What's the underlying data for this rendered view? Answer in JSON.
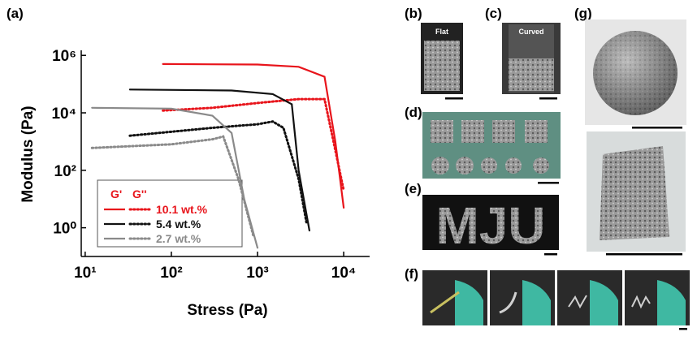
{
  "chart_data": {
    "type": "line",
    "panel": "(a)",
    "x_label": "Stress (Pa)",
    "y_label": "Modulus (Pa)",
    "log_x": true,
    "log_y": true,
    "xlim": [
      9,
      20000
    ],
    "ylim": [
      0.1,
      1500000
    ],
    "xticks": [
      {
        "value": 10,
        "label": "10¹"
      },
      {
        "value": 100,
        "label": "10²"
      },
      {
        "value": 1000,
        "label": "10³"
      },
      {
        "value": 10000,
        "label": "10⁴"
      }
    ],
    "yticks": [
      {
        "value": 1,
        "label": "10⁰"
      },
      {
        "value": 100,
        "label": "10²"
      },
      {
        "value": 10000,
        "label": "10⁴"
      },
      {
        "value": 1000000,
        "label": "10⁶"
      }
    ],
    "legend_headers": [
      "G'",
      "G''"
    ],
    "legend_position": "lower left",
    "series": [
      {
        "name": "10.1 wt.%",
        "color": "#e8141b",
        "storage": {
          "x": [
            80,
            1000,
            3000,
            6000,
            8000,
            10000
          ],
          "values": [
            500000,
            480000,
            400000,
            180000,
            1000,
            5
          ]
        },
        "loss": {
          "x": [
            80,
            300,
            1000,
            3000,
            6000,
            8000,
            10000
          ],
          "values": [
            12000,
            15000,
            22000,
            30000,
            30000,
            500,
            20
          ]
        }
      },
      {
        "name": "5.4 wt.%",
        "color": "#111111",
        "storage": {
          "x": [
            33,
            500,
            1500,
            2500,
            3000,
            4000
          ],
          "values": [
            65000,
            60000,
            45000,
            20000,
            100,
            0.8
          ]
        },
        "loss": {
          "x": [
            33,
            300,
            1000,
            1500,
            2000,
            3000,
            3700
          ],
          "values": [
            1600,
            3000,
            4000,
            5000,
            3000,
            50,
            1.5
          ]
        }
      },
      {
        "name": "2.7 wt.%",
        "color": "#8a8a8a",
        "storage": {
          "x": [
            12,
            100,
            300,
            500,
            700,
            1000
          ],
          "values": [
            15000,
            14000,
            8000,
            2000,
            10,
            0.2
          ]
        },
        "loss": {
          "x": [
            12,
            100,
            300,
            400,
            600,
            900
          ],
          "values": [
            600,
            800,
            1200,
            1500,
            50,
            0.5
          ]
        }
      }
    ]
  },
  "photos": {
    "b": {
      "panel": "(b)",
      "caption": "Flat"
    },
    "c": {
      "panel": "(c)",
      "caption": "Curved"
    },
    "d": {
      "panel": "(d)"
    },
    "e": {
      "panel": "(e)",
      "letters": "MJU"
    },
    "f": {
      "panel": "(f)"
    },
    "g": {
      "panel": "(g)"
    }
  }
}
